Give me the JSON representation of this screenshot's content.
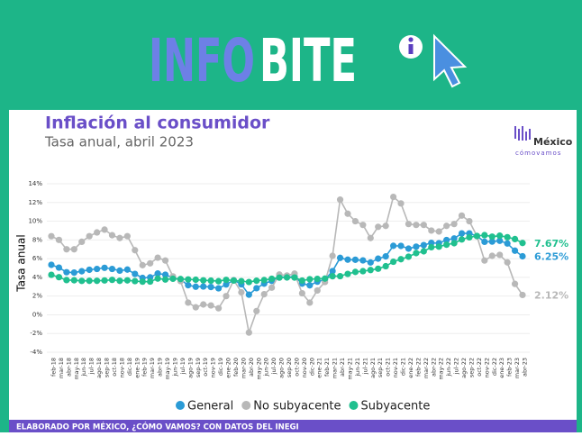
{
  "banner": {
    "brand_part1": "INFO",
    "brand_part2": "BITE"
  },
  "logo": {
    "name": "México",
    "tagline": "cómovamos"
  },
  "footer": "ELABORADO POR MÉXICO, ¿CÓMO VAMOS? CON DATOS DEL INEGI",
  "chart_data": {
    "type": "line",
    "title": "Inflación al consumidor",
    "subtitle": "Tasa anual, abril 2023",
    "y_label": "Tasa anual",
    "grid": true,
    "legend": "bottom",
    "categories": [
      "feb-18",
      "mar-18",
      "abr-18",
      "may-18",
      "jun-18",
      "jul-18",
      "ago-18",
      "sep-18",
      "oct-18",
      "nov-18",
      "dic-18",
      "ene-19",
      "feb-19",
      "mar-19",
      "abr-19",
      "may-19",
      "jun-19",
      "jul-19",
      "ago-19",
      "sep-19",
      "oct-19",
      "nov-19",
      "dic-19",
      "ene-20",
      "feb-20",
      "mar-20",
      "abr-20",
      "may-20",
      "jun-20",
      "jul-20",
      "ago-20",
      "sep-20",
      "oct-20",
      "nov-20",
      "dic-20",
      "ene-21",
      "feb-21",
      "mar-21",
      "abr-21",
      "may-21",
      "jun-21",
      "jul-21",
      "ago-21",
      "sep-21",
      "oct-21",
      "nov-21",
      "dic-21",
      "ene-22",
      "feb-22",
      "mar-22",
      "abr-22",
      "may-22",
      "jun-22",
      "jul-22",
      "ago-22",
      "sep-22",
      "oct-22",
      "nov-22",
      "dic-22",
      "ene-23",
      "feb-23",
      "mar-23",
      "abr-23"
    ],
    "ylim": [
      -4,
      14
    ],
    "yticks": [
      {
        "value": -4,
        "label": "-4%"
      },
      {
        "value": -2,
        "label": "-2%"
      },
      {
        "value": 0,
        "label": "0%"
      },
      {
        "value": 2,
        "label": "2%"
      },
      {
        "value": 4,
        "label": "4%"
      },
      {
        "value": 6,
        "label": "6%"
      },
      {
        "value": 8,
        "label": "8%"
      },
      {
        "value": 10,
        "label": "10%"
      },
      {
        "value": 12,
        "label": "12%"
      },
      {
        "value": 14,
        "label": "14%"
      }
    ],
    "series": [
      {
        "name": "General",
        "color": "#2b9bd6",
        "end_label": "6.25%",
        "values": [
          5.34,
          5.04,
          4.55,
          4.51,
          4.65,
          4.81,
          4.9,
          5.02,
          4.9,
          4.72,
          4.83,
          4.37,
          3.94,
          4.0,
          4.41,
          4.28,
          3.95,
          3.78,
          3.16,
          3.0,
          3.02,
          2.97,
          2.83,
          3.24,
          3.7,
          3.25,
          2.15,
          2.84,
          3.33,
          3.62,
          4.05,
          4.01,
          4.09,
          3.33,
          3.15,
          3.54,
          3.76,
          4.67,
          6.08,
          5.89,
          5.88,
          5.81,
          5.59,
          6.0,
          6.24,
          7.37,
          7.36,
          7.07,
          7.28,
          7.45,
          7.68,
          7.65,
          7.99,
          8.15,
          8.7,
          8.7,
          8.41,
          7.8,
          7.82,
          7.91,
          7.62,
          6.85,
          6.25
        ]
      },
      {
        "name": "No subyacente",
        "color": "#b8b8b8",
        "end_label": "2.12%",
        "values": [
          8.4,
          8.0,
          7.0,
          7.0,
          7.8,
          8.4,
          8.8,
          9.1,
          8.5,
          8.2,
          8.4,
          6.9,
          5.3,
          5.5,
          6.1,
          5.8,
          4.1,
          3.6,
          1.3,
          0.8,
          1.1,
          1.0,
          0.7,
          2.0,
          3.7,
          2.4,
          -1.9,
          0.4,
          2.2,
          2.9,
          4.3,
          4.2,
          4.4,
          2.3,
          1.3,
          2.6,
          3.5,
          6.3,
          12.3,
          10.8,
          10.0,
          9.6,
          8.2,
          9.4,
          9.5,
          12.6,
          11.9,
          9.7,
          9.6,
          9.6,
          9.0,
          8.9,
          9.5,
          9.7,
          10.6,
          10.0,
          8.4,
          5.8,
          6.3,
          6.4,
          5.6,
          3.3,
          2.12
        ]
      },
      {
        "name": "Subyacente",
        "color": "#20c08f",
        "end_label": "7.67%",
        "values": [
          4.27,
          4.02,
          3.71,
          3.69,
          3.62,
          3.63,
          3.63,
          3.67,
          3.73,
          3.63,
          3.68,
          3.6,
          3.54,
          3.55,
          3.87,
          3.77,
          3.85,
          3.82,
          3.78,
          3.75,
          3.68,
          3.65,
          3.59,
          3.73,
          3.66,
          3.6,
          3.5,
          3.64,
          3.71,
          3.85,
          3.97,
          3.99,
          3.98,
          3.66,
          3.8,
          3.84,
          3.87,
          4.12,
          4.13,
          4.37,
          4.58,
          4.66,
          4.78,
          4.92,
          5.19,
          5.67,
          5.94,
          6.21,
          6.59,
          6.78,
          7.22,
          7.28,
          7.49,
          7.65,
          8.05,
          8.28,
          8.42,
          8.51,
          8.35,
          8.45,
          8.29,
          8.09,
          7.67
        ]
      }
    ]
  }
}
